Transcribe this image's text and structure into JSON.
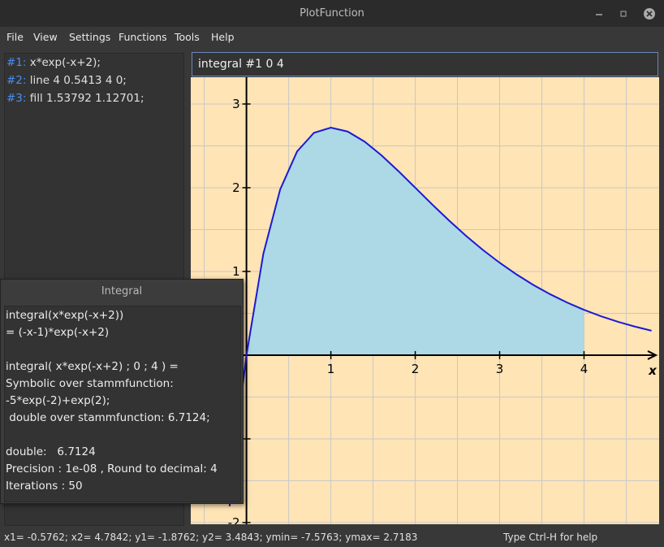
{
  "window": {
    "title": "PlotFunction"
  },
  "menu": [
    "File",
    "View",
    "Settings",
    "Functions",
    "Tools",
    "Help"
  ],
  "functions": [
    {
      "id": "#1:",
      "expr": "x*exp(-x+2);"
    },
    {
      "id": "#2:",
      "expr": "line 4 0.5413 4 0;"
    },
    {
      "id": "#3:",
      "expr": "fill 1.53792 1.12701;"
    }
  ],
  "command": "integral #1 0 4",
  "dialog": {
    "title": "Integral",
    "blocks": [
      [
        "integral(x*exp(-x+2))",
        "= (-x-1)*exp(-x+2)"
      ],
      [
        "integral( x*exp(-x+2) ; 0 ; 4 ) =",
        "Symbolic over stammfunction:",
        "-5*exp(-2)+exp(2);",
        " double over stammfunction: 6.7124;"
      ],
      [
        "double:   6.7124",
        "Precision : 1e-08 , Round to decimal: 4",
        "Iterations : 50"
      ]
    ]
  },
  "status": {
    "left": "x1= -0.5762; x2= 4.7842; y1= -1.8762; y2= 3.4843; ymin= -7.5763; ymax= 2.7183",
    "right": "Type Ctrl-H for help"
  },
  "chart_data": {
    "type": "line",
    "x_label": "x",
    "x": [
      -0.2,
      -0.1,
      0,
      0.2,
      0.4,
      0.6,
      0.8,
      1.0,
      1.2,
      1.4,
      1.6,
      1.8,
      2.0,
      2.2,
      2.4,
      2.6,
      2.8,
      3.0,
      3.2,
      3.4,
      3.6,
      3.8,
      4.0,
      4.2,
      4.4,
      4.6,
      4.8
    ],
    "series": [
      {
        "color": "#1a1ad6",
        "fill_color": "#add8e6",
        "values": [
          -1.805,
          -0.817,
          0,
          1.21,
          1.981,
          2.433,
          2.656,
          2.718,
          2.671,
          2.551,
          2.387,
          2.199,
          2,
          1.801,
          1.609,
          1.427,
          1.258,
          1.104,
          0.964,
          0.838,
          0.727,
          0.628,
          0.541,
          0.465,
          0.399,
          0.342,
          0.292
        ]
      }
    ],
    "fill_from": 0,
    "fill_to": 4,
    "xlim": [
      -0.66,
      4.89
    ],
    "ylim": [
      -2.02,
      3.32
    ],
    "xticks": [
      1,
      2,
      3,
      4
    ],
    "yticks": [
      -2,
      -1,
      1,
      2,
      3
    ],
    "grid": true,
    "grid_step": 0.5,
    "background": "#ffe4b5"
  }
}
